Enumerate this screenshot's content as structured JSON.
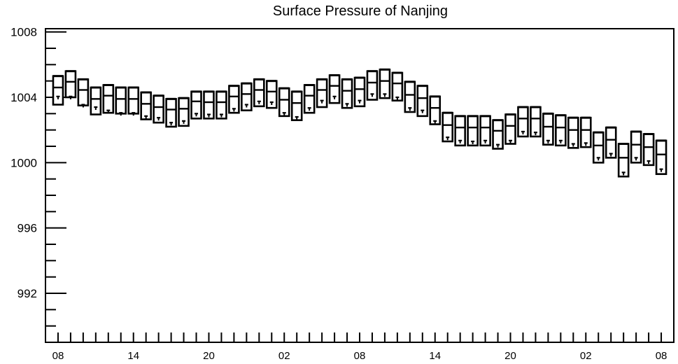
{
  "chart_data": {
    "type": "box",
    "title": "Surface Pressure of Nanjing",
    "xlabel": "",
    "ylabel": "",
    "ylim": [
      989,
      1008.2
    ],
    "yticks_major": [
      992,
      996,
      1000,
      1004,
      1008
    ],
    "ytick_minor_step": 1,
    "x_tick_labels": [
      "08",
      "14",
      "20",
      "02",
      "08",
      "14",
      "20",
      "02",
      "08"
    ],
    "x_tick_label_positions": [
      0,
      6,
      12,
      18,
      24,
      30,
      36,
      42,
      48
    ],
    "x_range": [
      -1,
      49
    ],
    "grid": false,
    "legend": "none",
    "series": [
      {
        "boxes": [
          {
            "x": 0,
            "min": 1003.55,
            "q1": 1003.55,
            "median": 1004.6,
            "q3": 1005.3,
            "max": 1005.3,
            "marker": 1004.05
          },
          {
            "x": 1,
            "min": 1004.0,
            "q1": 1004.0,
            "median": 1004.95,
            "q3": 1005.6,
            "max": 1005.6,
            "marker": 1004.05
          },
          {
            "x": 2,
            "min": 1003.5,
            "q1": 1003.5,
            "median": 1004.45,
            "q3": 1005.1,
            "max": 1005.1,
            "marker": 1003.55
          },
          {
            "x": 3,
            "min": 1002.95,
            "q1": 1002.95,
            "median": 1003.9,
            "q3": 1004.6,
            "max": 1004.6,
            "marker": 1003.4
          },
          {
            "x": 4,
            "min": 1003.05,
            "q1": 1003.05,
            "median": 1004.1,
            "q3": 1004.75,
            "max": 1004.75,
            "marker": 1003.2
          },
          {
            "x": 5,
            "min": 1003.0,
            "q1": 1003.0,
            "median": 1003.9,
            "q3": 1004.6,
            "max": 1004.6,
            "marker": 1003.05
          },
          {
            "x": 6,
            "min": 1003.0,
            "q1": 1003.0,
            "median": 1003.9,
            "q3": 1004.6,
            "max": 1004.6,
            "marker": 1003.05
          },
          {
            "x": 7,
            "min": 1002.65,
            "q1": 1002.65,
            "median": 1003.6,
            "q3": 1004.3,
            "max": 1004.3,
            "marker": 1002.85
          },
          {
            "x": 8,
            "min": 1002.45,
            "q1": 1002.45,
            "median": 1003.4,
            "q3": 1004.1,
            "max": 1004.1,
            "marker": 1002.75
          },
          {
            "x": 9,
            "min": 1002.2,
            "q1": 1002.2,
            "median": 1003.25,
            "q3": 1003.9,
            "max": 1003.9,
            "marker": 1002.45
          },
          {
            "x": 10,
            "min": 1002.25,
            "q1": 1002.25,
            "median": 1003.3,
            "q3": 1003.95,
            "max": 1003.95,
            "marker": 1002.55
          },
          {
            "x": 11,
            "min": 1002.7,
            "q1": 1002.7,
            "median": 1003.75,
            "q3": 1004.35,
            "max": 1004.35,
            "marker": 1003.0
          },
          {
            "x": 12,
            "min": 1002.7,
            "q1": 1002.7,
            "median": 1003.7,
            "q3": 1004.35,
            "max": 1004.35,
            "marker": 1002.95
          },
          {
            "x": 13,
            "min": 1002.7,
            "q1": 1002.7,
            "median": 1003.7,
            "q3": 1004.35,
            "max": 1004.35,
            "marker": 1002.95
          },
          {
            "x": 14,
            "min": 1003.05,
            "q1": 1003.05,
            "median": 1004.05,
            "q3": 1004.7,
            "max": 1004.7,
            "marker": 1003.3
          },
          {
            "x": 15,
            "min": 1003.2,
            "q1": 1003.2,
            "median": 1004.2,
            "q3": 1004.85,
            "max": 1004.85,
            "marker": 1003.55
          },
          {
            "x": 16,
            "min": 1003.45,
            "q1": 1003.45,
            "median": 1004.45,
            "q3": 1005.1,
            "max": 1005.1,
            "marker": 1003.75
          },
          {
            "x": 17,
            "min": 1003.35,
            "q1": 1003.35,
            "median": 1004.35,
            "q3": 1005.0,
            "max": 1005.0,
            "marker": 1003.7
          },
          {
            "x": 18,
            "min": 1002.85,
            "q1": 1002.85,
            "median": 1003.85,
            "q3": 1004.55,
            "max": 1004.55,
            "marker": 1003.05
          },
          {
            "x": 19,
            "min": 1002.6,
            "q1": 1002.6,
            "median": 1003.65,
            "q3": 1004.35,
            "max": 1004.35,
            "marker": 1002.8
          },
          {
            "x": 20,
            "min": 1003.05,
            "q1": 1003.05,
            "median": 1004.1,
            "q3": 1004.75,
            "max": 1004.75,
            "marker": 1003.35
          },
          {
            "x": 21,
            "min": 1003.4,
            "q1": 1003.4,
            "median": 1004.45,
            "q3": 1005.1,
            "max": 1005.1,
            "marker": 1003.8
          },
          {
            "x": 22,
            "min": 1003.65,
            "q1": 1003.65,
            "median": 1004.7,
            "q3": 1005.35,
            "max": 1005.35,
            "marker": 1004.05
          },
          {
            "x": 23,
            "min": 1003.35,
            "q1": 1003.35,
            "median": 1004.4,
            "q3": 1005.1,
            "max": 1005.1,
            "marker": 1003.6
          },
          {
            "x": 24,
            "min": 1003.45,
            "q1": 1003.45,
            "median": 1004.5,
            "q3": 1005.2,
            "max": 1005.2,
            "marker": 1003.8
          },
          {
            "x": 25,
            "min": 1003.85,
            "q1": 1003.85,
            "median": 1004.9,
            "q3": 1005.6,
            "max": 1005.6,
            "marker": 1004.2
          },
          {
            "x": 26,
            "min": 1003.95,
            "q1": 1003.95,
            "median": 1005.0,
            "q3": 1005.7,
            "max": 1005.7,
            "marker": 1004.2
          },
          {
            "x": 27,
            "min": 1003.8,
            "q1": 1003.8,
            "median": 1004.85,
            "q3": 1005.5,
            "max": 1005.5,
            "marker": 1004.0
          },
          {
            "x": 28,
            "min": 1003.1,
            "q1": 1003.1,
            "median": 1004.15,
            "q3": 1004.95,
            "max": 1004.95,
            "marker": 1003.35
          },
          {
            "x": 29,
            "min": 1002.85,
            "q1": 1002.85,
            "median": 1003.95,
            "q3": 1004.7,
            "max": 1004.7,
            "marker": 1003.2
          },
          {
            "x": 30,
            "min": 1002.35,
            "q1": 1002.35,
            "median": 1003.35,
            "q3": 1004.05,
            "max": 1004.05,
            "marker": 1002.55
          },
          {
            "x": 31,
            "min": 1001.3,
            "q1": 1001.3,
            "median": 1002.3,
            "q3": 1003.05,
            "max": 1003.05,
            "marker": 1001.55
          },
          {
            "x": 32,
            "min": 1001.05,
            "q1": 1001.05,
            "median": 1002.15,
            "q3": 1002.85,
            "max": 1002.85,
            "marker": 1001.35
          },
          {
            "x": 33,
            "min": 1001.05,
            "q1": 1001.05,
            "median": 1002.15,
            "q3": 1002.85,
            "max": 1002.85,
            "marker": 1001.3
          },
          {
            "x": 34,
            "min": 1001.05,
            "q1": 1001.05,
            "median": 1002.15,
            "q3": 1002.85,
            "max": 1002.85,
            "marker": 1001.35
          },
          {
            "x": 35,
            "min": 1000.85,
            "q1": 1000.85,
            "median": 1001.95,
            "q3": 1002.6,
            "max": 1002.6,
            "marker": 1001.1
          },
          {
            "x": 36,
            "min": 1001.15,
            "q1": 1001.15,
            "median": 1002.25,
            "q3": 1002.95,
            "max": 1002.95,
            "marker": 1001.35
          },
          {
            "x": 37,
            "min": 1001.6,
            "q1": 1001.6,
            "median": 1002.7,
            "q3": 1003.4,
            "max": 1003.4,
            "marker": 1001.9
          },
          {
            "x": 38,
            "min": 1001.6,
            "q1": 1001.6,
            "median": 1002.7,
            "q3": 1003.4,
            "max": 1003.4,
            "marker": 1001.85
          },
          {
            "x": 39,
            "min": 1001.1,
            "q1": 1001.1,
            "median": 1002.2,
            "q3": 1003.0,
            "max": 1003.0,
            "marker": 1001.35
          },
          {
            "x": 40,
            "min": 1001.05,
            "q1": 1001.05,
            "median": 1002.15,
            "q3": 1002.9,
            "max": 1002.9,
            "marker": 1001.35
          },
          {
            "x": 41,
            "min": 1000.9,
            "q1": 1000.9,
            "median": 1002.0,
            "q3": 1002.75,
            "max": 1002.75,
            "marker": 1001.15
          },
          {
            "x": 42,
            "min": 1000.95,
            "q1": 1000.95,
            "median": 1002.0,
            "q3": 1002.75,
            "max": 1002.75,
            "marker": 1001.2
          },
          {
            "x": 43,
            "min": 1000.0,
            "q1": 1000.0,
            "median": 1001.05,
            "q3": 1001.85,
            "max": 1001.85,
            "marker": 1000.3
          },
          {
            "x": 44,
            "min": 1000.3,
            "q1": 1000.3,
            "median": 1001.4,
            "q3": 1002.15,
            "max": 1002.15,
            "marker": 1000.55
          },
          {
            "x": 45,
            "min": 999.15,
            "q1": 999.15,
            "median": 1000.3,
            "q3": 1001.15,
            "max": 1001.15,
            "marker": 999.4
          },
          {
            "x": 46,
            "min": 1000.0,
            "q1": 1000.0,
            "median": 1001.1,
            "q3": 1001.9,
            "max": 1001.9,
            "marker": 1000.3
          },
          {
            "x": 47,
            "min": 999.85,
            "q1": 999.85,
            "median": 1000.95,
            "q3": 1001.75,
            "max": 1001.75,
            "marker": 1000.1
          },
          {
            "x": 48,
            "min": 999.3,
            "q1": 999.3,
            "median": 1000.5,
            "q3": 1001.35,
            "max": 1001.35,
            "marker": 999.6
          }
        ]
      }
    ]
  }
}
